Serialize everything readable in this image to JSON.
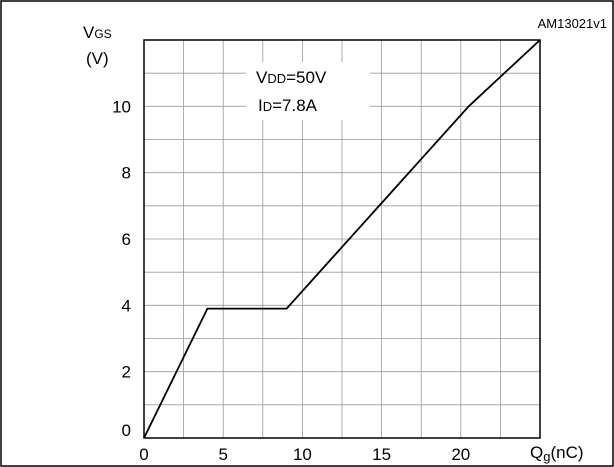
{
  "chart_data": {
    "type": "line",
    "reference_code": "AM13021v1",
    "ylabel": {
      "main": "V",
      "sub": "GS",
      "unit": "(V)"
    },
    "xlabel": {
      "main": "Q",
      "sub": "g",
      "unit": "(nC)"
    },
    "annotations": [
      {
        "prefix": "V",
        "sub": "DD",
        "suffix": "=50V"
      },
      {
        "prefix": "I",
        "sub": "D",
        "suffix": "=7.8A"
      }
    ],
    "xlim": [
      0,
      25
    ],
    "ylim": [
      0,
      12
    ],
    "x_ticks": [
      0,
      5,
      10,
      15,
      20
    ],
    "y_ticks": [
      0,
      2,
      4,
      6,
      8,
      10
    ],
    "grid": true,
    "series": [
      {
        "x": [
          0,
          4,
          9,
          20.5,
          25
        ],
        "y": [
          0,
          3.9,
          3.9,
          10,
          12
        ]
      }
    ]
  }
}
